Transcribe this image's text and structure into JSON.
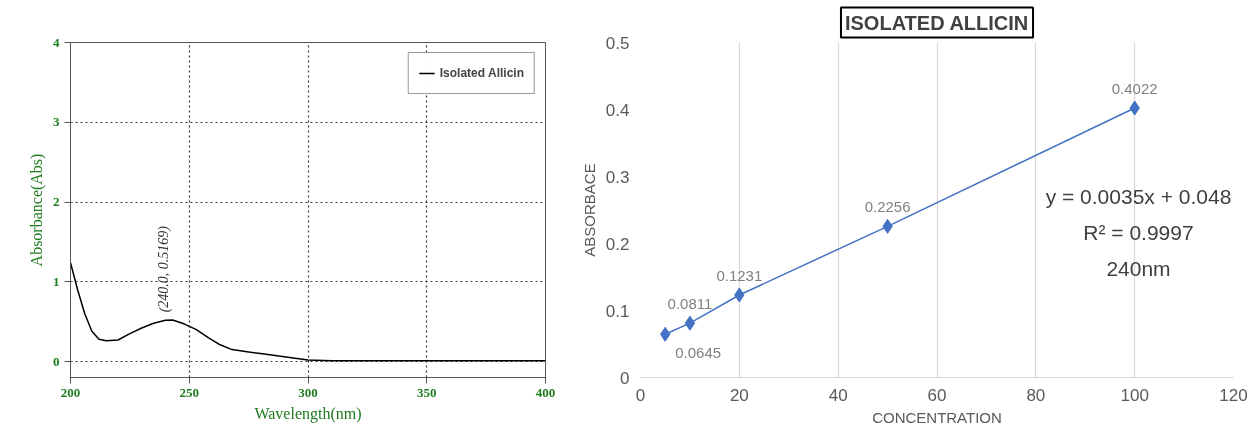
{
  "chart_data": [
    {
      "type": "line",
      "xlabel": "Wavelength(nm)",
      "ylabel": "Absorbance(Abs)",
      "x": [
        200,
        203,
        206,
        209,
        212,
        215,
        220,
        225,
        230,
        235,
        240,
        243,
        248,
        253,
        258,
        263,
        268,
        275,
        280,
        290,
        300,
        310,
        400
      ],
      "series": [
        {
          "name": "Isolated Allicin",
          "color": "#000000",
          "values": [
            1.24,
            0.9,
            0.6,
            0.38,
            0.28,
            0.26,
            0.27,
            0.35,
            0.42,
            0.48,
            0.5169,
            0.52,
            0.47,
            0.4,
            0.3,
            0.21,
            0.15,
            0.12,
            0.1,
            0.06,
            0.02,
            0.01,
            0.01
          ]
        }
      ],
      "annotations": [
        {
          "text": "(240.0, 0.5169)",
          "x": 240,
          "y": 0.5169
        }
      ],
      "xlim": [
        200,
        400
      ],
      "ylim": [
        -0.2,
        4
      ],
      "xticks": [
        200,
        250,
        300,
        350,
        400
      ],
      "yticks": [
        0,
        1,
        2,
        3,
        4
      ],
      "grid": true,
      "legend": "top right",
      "marker": "none",
      "line_style": "solid"
    },
    {
      "type": "line",
      "title": "ISOLATED ALLICIN",
      "xlabel": "CONCENTRATION",
      "ylabel": "ABSORBACE",
      "x": [
        5,
        10,
        20,
        50,
        100
      ],
      "series": [
        {
          "color": "#4472c4",
          "values": [
            0.0645,
            0.0811,
            0.1231,
            0.2256,
            0.4022
          ]
        }
      ],
      "annotations": [
        "y = 0.0035x + 0.048",
        "R² = 0.9997",
        "240nm"
      ],
      "xlim": [
        0,
        120
      ],
      "ylim": [
        0,
        0.5
      ],
      "xticks": [
        0,
        20,
        40,
        60,
        80,
        100,
        120
      ],
      "yticks": [
        0,
        0.1,
        0.2,
        0.3,
        0.4,
        0.5
      ],
      "grid": "x",
      "marker": "diamond",
      "line_style": "solid",
      "data_labels": true
    }
  ]
}
